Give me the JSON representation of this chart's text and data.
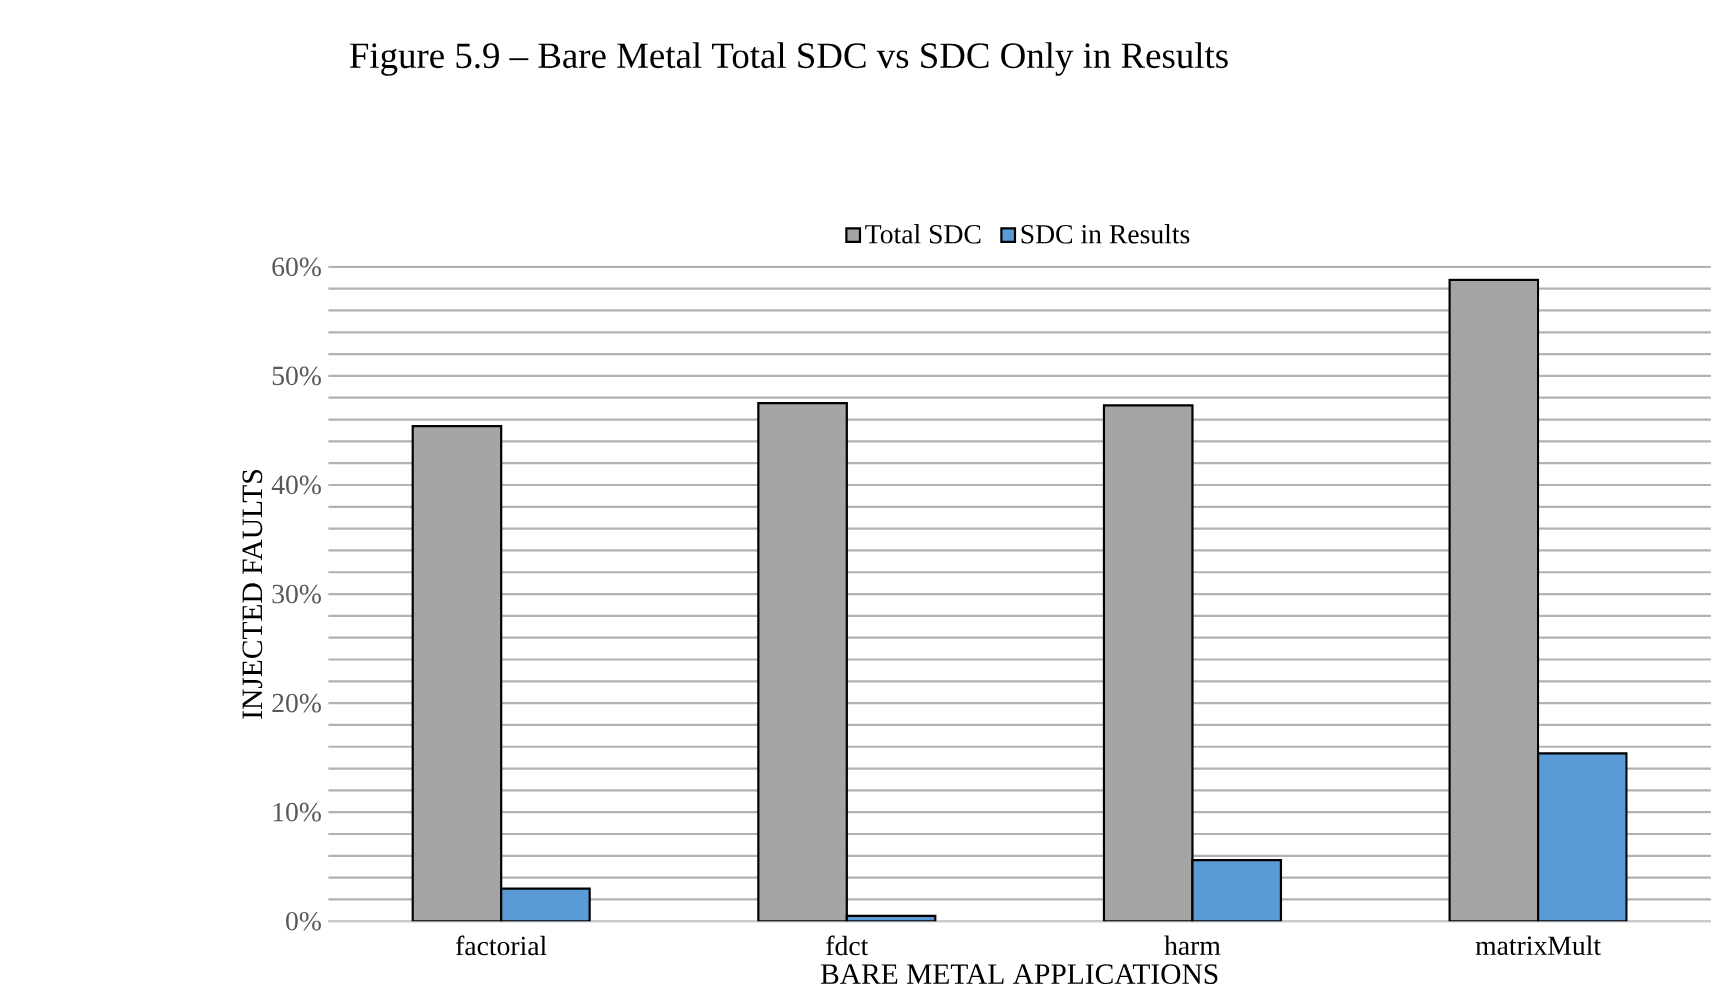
{
  "chart_data": {
    "type": "bar",
    "title": "Figure 5.9 – Bare Metal Total SDC vs SDC Only in Results",
    "xlabel": "BARE METAL APPLICATIONS",
    "ylabel": "INJECTED FAULTS",
    "categories": [
      "factorial",
      "fdct",
      "harm",
      "matrixMult"
    ],
    "series": [
      {
        "name": "Total SDC",
        "color": "#a5a5a5",
        "values": [
          45.4,
          47.5,
          47.3,
          58.8
        ]
      },
      {
        "name": "SDC in Results",
        "color": "#5b9bd5",
        "values": [
          3.0,
          0.5,
          5.6,
          15.4
        ]
      }
    ],
    "ylim": [
      0,
      60
    ],
    "yticks": [
      {
        "value": 0,
        "label": "0%"
      },
      {
        "value": 10,
        "label": "10%"
      },
      {
        "value": 20,
        "label": "20%"
      },
      {
        "value": 30,
        "label": "30%"
      },
      {
        "value": 40,
        "label": "40%"
      },
      {
        "value": 50,
        "label": "50%"
      },
      {
        "value": 60,
        "label": "60%"
      }
    ],
    "grid": "y",
    "legend": "top"
  }
}
